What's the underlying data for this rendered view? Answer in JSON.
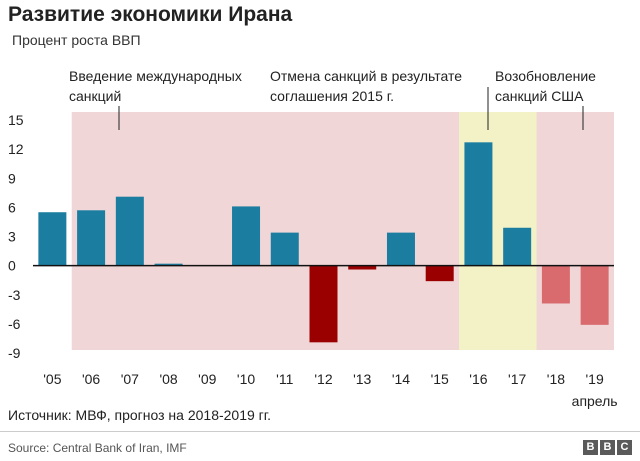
{
  "chart_data": {
    "type": "bar",
    "title": "Развитие экономики Ирана",
    "subtitle": "Процент роста ВВП",
    "categories": [
      "'05",
      "'06",
      "'07",
      "'08",
      "'09",
      "'10",
      "'11",
      "'12",
      "'13",
      "'14",
      "'15",
      "'16",
      "'17",
      "'18",
      "'19"
    ],
    "category_note": "апрель",
    "values": [
      5.5,
      5.7,
      7.1,
      0.2,
      0,
      6.1,
      3.4,
      -7.9,
      -0.4,
      3.4,
      -1.6,
      12.7,
      3.9,
      -3.9,
      -6.1
    ],
    "bar_status": [
      "actual",
      "actual",
      "actual",
      "actual",
      "actual",
      "actual",
      "actual",
      "actual",
      "actual",
      "actual",
      "actual",
      "actual",
      "actual",
      "forecast",
      "forecast"
    ],
    "ylim": [
      -9,
      15
    ],
    "yticks": [
      15,
      12,
      9,
      6,
      3,
      0,
      -3,
      -6,
      -9
    ],
    "bands": [
      {
        "name": "sanctions",
        "from": "'06",
        "to": "'15",
        "label": [
          "Введение международных",
          "санкций"
        ]
      },
      {
        "name": "sanctions-lifted",
        "from": "'16",
        "to": "'17",
        "label": [
          "Отмена санкций в результате",
          "соглашения 2015 г."
        ]
      },
      {
        "name": "sanctions-renewed",
        "from": "'18",
        "to": "'19",
        "label": [
          "Возобновление",
          "санкций США"
        ]
      }
    ],
    "colors": {
      "positive": "#1b7ea1",
      "negative": "#9a0000",
      "forecast": "#d96b6e",
      "band_sanctions": "#f1d6d7",
      "band_lifted": "#f2f2c6",
      "zero_line": "#111111"
    }
  },
  "note": "Источник: МВФ, прогноз на 2018-2019 гг.",
  "source": "Source: Central Bank of Iran, IMF",
  "logo": [
    "B",
    "B",
    "C"
  ]
}
